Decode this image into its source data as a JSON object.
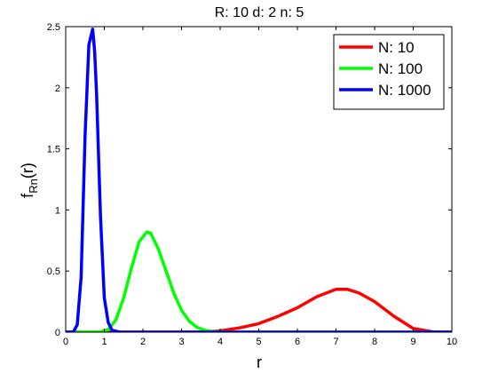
{
  "chart_data": {
    "type": "line",
    "title": "R: 10 d: 2 n: 5",
    "xlabel": "r",
    "ylabel": {
      "main": "f",
      "subscript": "Rn",
      "suffix": "(r)"
    },
    "xlim": [
      0,
      10
    ],
    "ylim": [
      0,
      2.5
    ],
    "x_ticks": [
      0,
      1,
      2,
      3,
      4,
      5,
      6,
      7,
      8,
      9,
      10
    ],
    "x_tick_labels": [
      "0",
      "1",
      "2",
      "3",
      "4",
      "5",
      "6",
      "7",
      "8",
      "9",
      "10"
    ],
    "y_ticks": [
      0,
      0.5,
      1,
      1.5,
      2,
      2.5
    ],
    "y_tick_labels": [
      "0",
      "0.5",
      "1",
      "1.5",
      "2",
      "2.5"
    ],
    "grid": false,
    "legend_position": "top-right",
    "series": [
      {
        "name": "N: 10",
        "color": "#ff0000",
        "x": [
          0,
          1,
          2,
          3,
          3.5,
          4,
          4.5,
          5,
          5.5,
          6,
          6.5,
          7,
          7.3,
          7.6,
          8,
          8.5,
          9,
          9.5,
          10
        ],
        "y": [
          0,
          0,
          0,
          0,
          0.002,
          0.01,
          0.035,
          0.07,
          0.13,
          0.2,
          0.29,
          0.35,
          0.35,
          0.32,
          0.25,
          0.13,
          0.03,
          0.003,
          0
        ]
      },
      {
        "name": "N: 100",
        "color": "#00ff00",
        "x": [
          0,
          0.9,
          1.1,
          1.3,
          1.5,
          1.7,
          1.9,
          2.1,
          2.2,
          2.4,
          2.6,
          2.8,
          3.0,
          3.2,
          3.4,
          3.6,
          3.8,
          4.2,
          5,
          6,
          10
        ],
        "y": [
          0,
          0.002,
          0.02,
          0.1,
          0.28,
          0.52,
          0.74,
          0.82,
          0.81,
          0.68,
          0.5,
          0.32,
          0.18,
          0.09,
          0.04,
          0.015,
          0.005,
          0.001,
          0,
          0,
          0
        ]
      },
      {
        "name": "N: 1000",
        "color": "#0000ff",
        "x": [
          0,
          0.2,
          0.3,
          0.4,
          0.5,
          0.6,
          0.7,
          0.75,
          0.8,
          0.9,
          1.0,
          1.1,
          1.2,
          1.4,
          1.6,
          10
        ],
        "y": [
          0,
          0.002,
          0.06,
          0.45,
          1.6,
          2.35,
          2.48,
          2.3,
          1.95,
          0.95,
          0.28,
          0.08,
          0.015,
          0,
          0,
          0
        ]
      }
    ]
  }
}
